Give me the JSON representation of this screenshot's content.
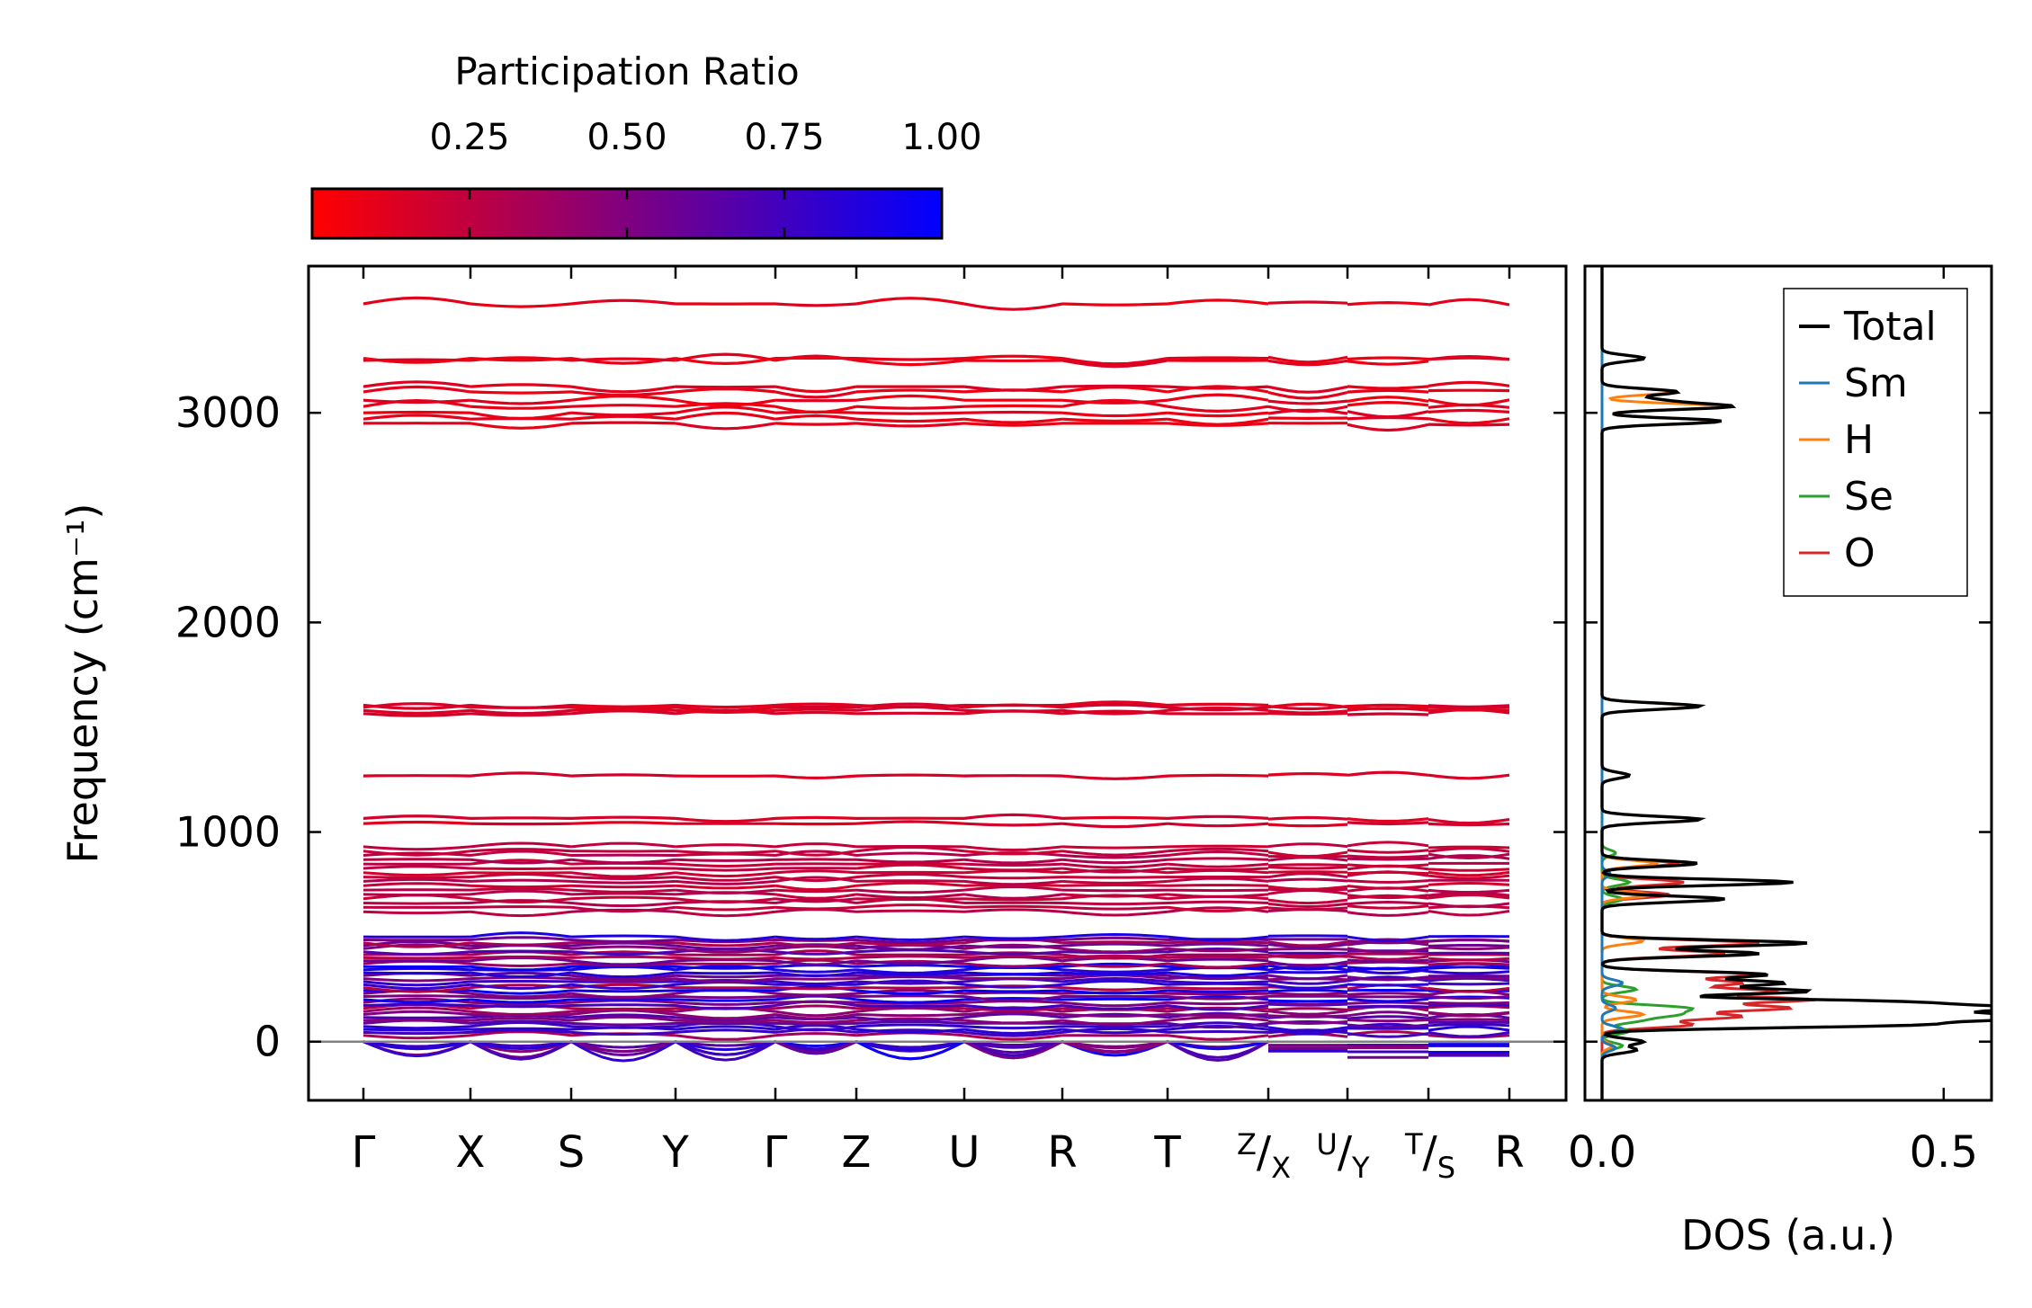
{
  "colorbar": {
    "title": "Participation Ratio",
    "ticks": [
      0.25,
      0.5,
      0.75,
      1.0
    ],
    "tick_labels": [
      "0.25",
      "0.50",
      "0.75",
      "1.00"
    ],
    "range": [
      0.0,
      1.0
    ],
    "color_low": "#ff0000",
    "color_high": "#0000ff"
  },
  "chart_data": [
    {
      "type": "line",
      "panel": "phonon band structure",
      "ylabel": "Frequency (cm⁻¹)",
      "ylim": [
        -280,
        3700
      ],
      "y_ticks": [
        0,
        1000,
        2000,
        3000
      ],
      "y_tick_labels": [
        "0",
        "1000",
        "2000",
        "3000"
      ],
      "path_labels": [
        {
          "label": "Γ"
        },
        {
          "label": "X"
        },
        {
          "label": "S"
        },
        {
          "label": "Y"
        },
        {
          "label": "Γ"
        },
        {
          "label": "Z"
        },
        {
          "label": "U"
        },
        {
          "label": "R"
        },
        {
          "label": "T"
        },
        {
          "pre": "Z",
          "mid": "/",
          "sub": "X"
        },
        {
          "pre": "U",
          "mid": "/",
          "sub": "Y"
        },
        {
          "pre": "T",
          "mid": "/",
          "sub": "S"
        },
        {
          "label": "R"
        }
      ],
      "zero_line_color": "#808080",
      "high_band_frequencies": [
        2950,
        2970,
        3000,
        3030,
        3060,
        3100,
        3125,
        3250,
        3260,
        3520
      ],
      "mid_band_frequencies": [
        1565,
        1580,
        1595,
        1605,
        1268,
        1040,
        1065
      ],
      "band_groups": [
        {
          "range": [
            620,
            930
          ],
          "count": 16,
          "participation": 0.2
        },
        {
          "range": [
            30,
            500
          ],
          "count": 34,
          "participation": 0.6
        }
      ],
      "imaginary_band_minimum": -100
    },
    {
      "type": "line",
      "panel": "density of states",
      "xlabel": "DOS (a.u.)",
      "xlim": [
        -0.025,
        0.57
      ],
      "x_ticks": [
        0.0,
        0.5
      ],
      "x_tick_labels": [
        "0.0",
        "0.5"
      ],
      "ylim": [
        -280,
        3700
      ],
      "legend_position": "top-right",
      "series": [
        {
          "name": "Total",
          "color": "#000000",
          "peaks": [
            [
              3260,
              0.062
            ],
            [
              3100,
              0.11
            ],
            [
              3060,
              0.075
            ],
            [
              3030,
              0.185
            ],
            [
              2960,
              0.175
            ],
            [
              1600,
              0.145
            ],
            [
              1270,
              0.04
            ],
            [
              1060,
              0.145
            ],
            [
              850,
              0.14
            ],
            [
              760,
              0.28
            ],
            [
              680,
              0.18
            ],
            [
              470,
              0.3
            ],
            [
              420,
              0.23
            ],
            [
              320,
              0.24
            ],
            [
              280,
              0.26
            ],
            [
              240,
              0.3
            ],
            [
              190,
              0.4
            ],
            [
              160,
              0.56
            ],
            [
              130,
              0.38
            ],
            [
              110,
              0.48
            ],
            [
              80,
              0.42
            ],
            [
              0,
              0.06
            ],
            [
              -40,
              0.05
            ]
          ]
        },
        {
          "name": "Sm",
          "color": "#1f77b4",
          "peaks": [
            [
              800,
              0.012
            ],
            [
              280,
              0.03
            ],
            [
              160,
              0.02
            ],
            [
              60,
              0.03
            ],
            [
              -30,
              0.02
            ]
          ]
        },
        {
          "name": "H",
          "color": "#ff7f0e",
          "peaks": [
            [
              3260,
              0.06
            ],
            [
              3100,
              0.105
            ],
            [
              3030,
              0.18
            ],
            [
              2960,
              0.17
            ],
            [
              1600,
              0.14
            ],
            [
              1270,
              0.04
            ],
            [
              1060,
              0.14
            ],
            [
              850,
              0.08
            ],
            [
              700,
              0.07
            ],
            [
              480,
              0.06
            ],
            [
              200,
              0.05
            ],
            [
              130,
              0.06
            ],
            [
              -20,
              0.015
            ]
          ]
        },
        {
          "name": "Se",
          "color": "#2ca02c",
          "peaks": [
            [
              900,
              0.02
            ],
            [
              760,
              0.04
            ],
            [
              680,
              0.03
            ],
            [
              250,
              0.05
            ],
            [
              160,
              0.12
            ],
            [
              130,
              0.1
            ],
            [
              100,
              0.05
            ],
            [
              50,
              0.04
            ],
            [
              -20,
              0.03
            ]
          ]
        },
        {
          "name": "O",
          "color": "#d62728",
          "peaks": [
            [
              850,
              0.11
            ],
            [
              760,
              0.12
            ],
            [
              700,
              0.1
            ],
            [
              470,
              0.23
            ],
            [
              420,
              0.18
            ],
            [
              320,
              0.22
            ],
            [
              280,
              0.2
            ],
            [
              240,
              0.25
            ],
            [
              200,
              0.3
            ],
            [
              160,
              0.27
            ],
            [
              120,
              0.2
            ],
            [
              80,
              0.13
            ]
          ]
        }
      ]
    }
  ]
}
